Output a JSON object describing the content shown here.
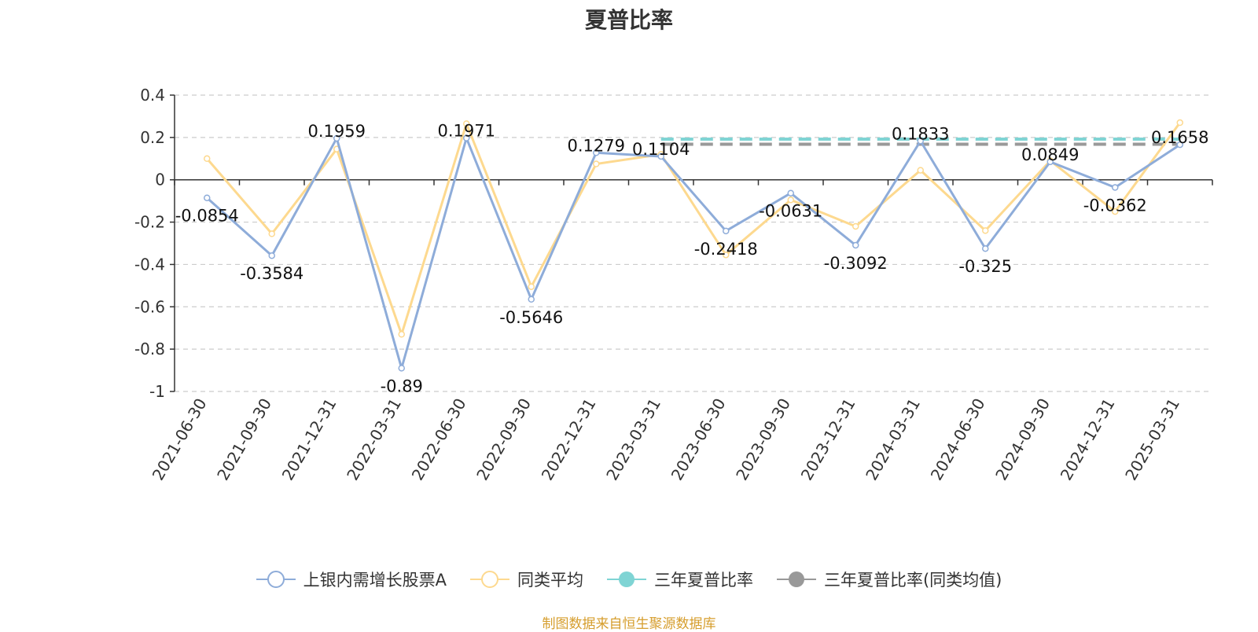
{
  "chart_data": {
    "type": "line",
    "title": "夏普比率",
    "categories": [
      "2021-06-30",
      "2021-09-30",
      "2021-12-31",
      "2022-03-31",
      "2022-06-30",
      "2022-09-30",
      "2022-12-31",
      "2023-03-31",
      "2023-06-30",
      "2023-09-30",
      "2023-12-31",
      "2024-03-31",
      "2024-06-30",
      "2024-09-30",
      "2024-12-31",
      "2025-03-31"
    ],
    "ylim": [
      -1,
      0.4
    ],
    "yticks": [
      0.4,
      0.2,
      0,
      -0.2,
      -0.4,
      -0.6,
      -0.8,
      -1
    ],
    "ytick_labels": [
      "0.4",
      "0.2",
      "0",
      "-0.2",
      "-0.4",
      "-0.6",
      "-0.8",
      "-1"
    ],
    "grid": true,
    "legend_position": "bottom",
    "series": [
      {
        "name": "上银内需增长股票A",
        "color": "#8eacd9",
        "values": [
          -0.0854,
          -0.3584,
          0.1959,
          -0.89,
          0.1971,
          -0.5646,
          0.1279,
          0.1104,
          -0.2418,
          -0.0631,
          -0.3092,
          0.1833,
          -0.325,
          0.0849,
          -0.0362,
          0.1658
        ],
        "labels": [
          "-0.0854",
          "-0.3584",
          "0.1959",
          "-0.89",
          "0.1971",
          "-0.5646",
          "0.1279",
          "0.1104",
          "-0.2418",
          "-0.0631",
          "-0.3092",
          "0.1833",
          "-0.325",
          "0.0849",
          "-0.0362",
          "0.1658"
        ]
      },
      {
        "name": "同类平均",
        "color": "#fdd98f",
        "values": [
          0.1,
          -0.255,
          0.145,
          -0.73,
          0.265,
          -0.505,
          0.075,
          0.12,
          -0.355,
          -0.095,
          -0.22,
          0.045,
          -0.24,
          0.09,
          -0.15,
          0.27
        ]
      },
      {
        "name": "三年夏普比率",
        "color": "#7fd4d4",
        "type": "dashed-line",
        "value": 0.192,
        "x_start": "2023-03-31",
        "x_end": "2025-03-31"
      },
      {
        "name": "三年夏普比率(同类均值)",
        "color": "#999999",
        "type": "dashed-line",
        "value": 0.168,
        "x_start": "2023-03-31",
        "x_end": "2025-03-31"
      }
    ]
  },
  "source_note": "制图数据来自恒生聚源数据库"
}
